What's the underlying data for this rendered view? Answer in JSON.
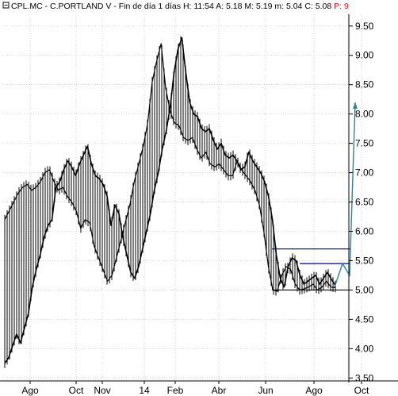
{
  "header": {
    "symbol": "CPL.MC",
    "name": "C.PORTLAND V",
    "period": "Fin de día 1 días",
    "high_label": "H:",
    "high_value": "11:54",
    "ask_label": "A:",
    "ask_value": "5.18",
    "mid_label": "M:",
    "mid_value": "5.19",
    "min_label": "m:",
    "min_value": "5.04",
    "close_label": "C:",
    "close_value": "5.08",
    "p_label": "P:",
    "p_value": "9"
  },
  "colors": {
    "price": "#000000",
    "channel": "#00008b",
    "projection": "#2f7f9f",
    "grid": "#b8b8b8",
    "p_marker": "#ff0000"
  },
  "chart_data": {
    "type": "line",
    "title": "CPL.MC - C.PORTLAND V - Fin de día 1 días",
    "xlabel": "",
    "ylabel": "",
    "ylim": [
      3.45,
      9.7
    ],
    "grid": true,
    "y_axis_position": "right",
    "yticks": [
      "3.50",
      "4.00",
      "4.50",
      "5.00",
      "5.50",
      "6.00",
      "6.50",
      "7.00",
      "7.50",
      "8.00",
      "8.50",
      "9.00",
      "9.50"
    ],
    "x_tick_labels": [
      "Ago",
      "Oct",
      "Nov",
      "14",
      "Feb",
      "Abr",
      "Jun",
      "Ago",
      "Oct"
    ],
    "series": [
      {
        "values": [
          3.75,
          3.85,
          4.05,
          4.25,
          4.1,
          4.35,
          4.6,
          5.05,
          5.35,
          5.6,
          5.9,
          6.1,
          6.2,
          6.75,
          6.85,
          7.05,
          7.2,
          7.1,
          6.95,
          7.15,
          7.3,
          7.45,
          7.15,
          6.95,
          6.9,
          6.8,
          6.6,
          6.1,
          6.45,
          6.3,
          5.9,
          5.6,
          5.3,
          5.2,
          5.4,
          5.7,
          6.0,
          6.3,
          6.7,
          7.0,
          7.4,
          7.7,
          8.1,
          8.7,
          9.1,
          9.3,
          8.7,
          8.2,
          8.0,
          7.95,
          7.75,
          7.7,
          7.75,
          7.55,
          7.4,
          7.5,
          7.3,
          7.25,
          7.3,
          7.2,
          7.05,
          7.1,
          7.35,
          7.2,
          7.1,
          7.0,
          6.85,
          6.6,
          6.2,
          5.6,
          5.2,
          5.05,
          5.4,
          5.55,
          5.5,
          5.25,
          5.1,
          5.15,
          5.2,
          5.25,
          5.1,
          5.2,
          5.3,
          5.18,
          5.08
        ]
      },
      {
        "values": [
          6.2,
          6.35,
          6.5,
          6.65,
          6.75,
          6.8,
          6.7,
          6.75,
          6.85,
          7.0,
          7.05,
          6.85,
          6.7,
          6.75,
          6.6,
          6.5,
          6.35,
          6.05,
          6.2,
          6.15,
          5.75,
          5.55,
          5.35,
          5.15,
          5.25,
          5.55,
          5.85,
          6.15,
          6.45,
          6.85,
          7.15,
          7.45,
          7.85,
          8.55,
          8.9,
          9.2,
          8.45,
          8.05,
          7.85,
          7.8,
          7.6,
          7.55,
          7.6,
          7.4,
          7.25,
          7.35,
          7.15,
          7.1,
          7.15,
          7.05,
          6.95,
          6.95,
          7.2,
          7.05,
          6.95,
          6.85,
          6.7,
          6.45,
          6.0,
          5.4,
          5.0,
          4.98,
          5.25,
          5.4,
          5.35,
          5.1,
          5.0,
          5.02,
          5.05,
          5.1,
          5.0,
          5.05,
          5.15,
          5.05,
          5.04
        ]
      }
    ],
    "annotations": {
      "channel_upper": 5.7,
      "channel_lower": 5.0,
      "range_top": 5.45,
      "projection": [
        5.05,
        5.45,
        5.25,
        8.2
      ]
    }
  }
}
